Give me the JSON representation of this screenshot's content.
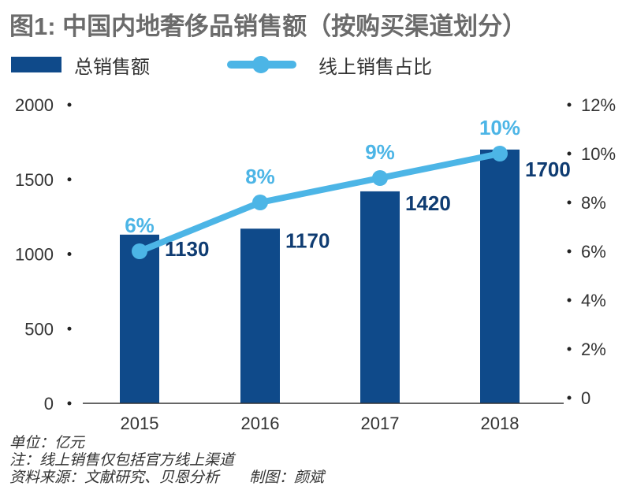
{
  "chart_data": {
    "type": "bar+line",
    "title": "图1: 中国内地奢侈品销售额（按购买渠道划分）",
    "categories": [
      "2015",
      "2016",
      "2017",
      "2018"
    ],
    "series": [
      {
        "name": "总销售额",
        "type": "bar",
        "axis": "left",
        "values": [
          1130,
          1170,
          1420,
          1700
        ],
        "data_labels": [
          "1130",
          "1170",
          "1420",
          "1700"
        ],
        "color": "#0f4a8a"
      },
      {
        "name": "线上销售占比",
        "type": "line",
        "axis": "right",
        "values": [
          6,
          8,
          9,
          10
        ],
        "data_labels": [
          "6%",
          "8%",
          "9%",
          "10%"
        ],
        "color": "#4cb5e6"
      }
    ],
    "left_axis": {
      "ylim": [
        0,
        2000
      ],
      "ticks": [
        "0",
        "500",
        "1000",
        "1500",
        "2000"
      ]
    },
    "right_axis": {
      "ylim": [
        0,
        12
      ],
      "ticks": [
        "0",
        "2%",
        "4%",
        "6%",
        "8%",
        "10%",
        "12%"
      ]
    },
    "grid": false,
    "legend": "top-left"
  },
  "notes": {
    "unit": "单位：亿元",
    "note": "注：线上销售仅包括官方线上渠道",
    "source": "资料来源：文献研究、贝恩分析",
    "author": "制图：颜斌"
  }
}
